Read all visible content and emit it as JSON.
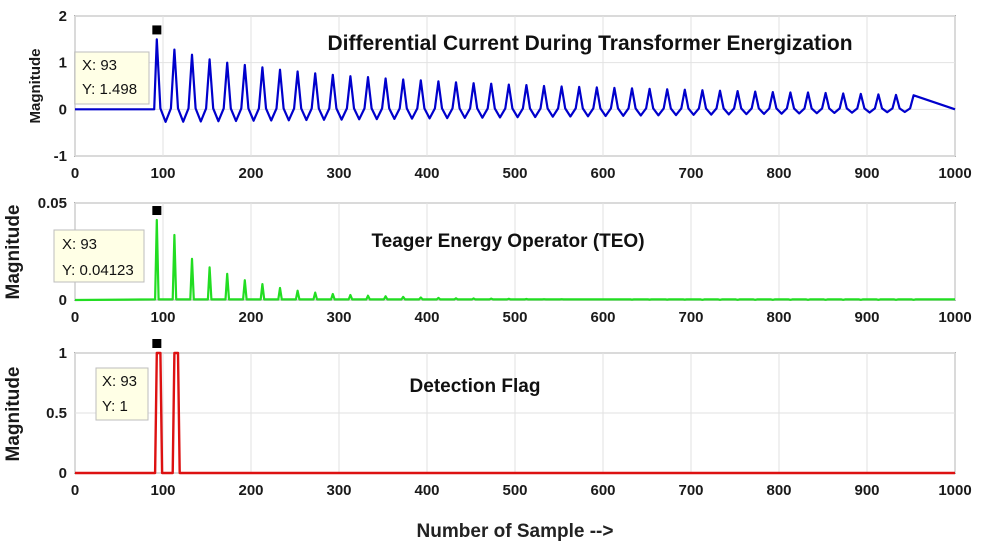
{
  "chart_data": [
    {
      "type": "line",
      "title": "Differential Current During Transformer Energization",
      "ylabel": "Magnitude",
      "xlabel": "",
      "xlim": [
        0,
        1000
      ],
      "ylim": [
        -1,
        2
      ],
      "xticks": [
        "0",
        "100",
        "200",
        "300",
        "400",
        "500",
        "600",
        "700",
        "800",
        "900",
        "1000"
      ],
      "yticks": [
        "-1",
        "0",
        "1",
        "2"
      ],
      "grid": true,
      "color": "#0000cc",
      "datatip": {
        "x": 93,
        "y": 1.498,
        "x_text": "X: 93",
        "y_text": "Y: 1.498"
      },
      "series": [
        {
          "x": [
            0,
            90,
            93,
            113,
            133,
            153,
            173,
            193,
            213,
            233,
            253,
            273,
            293,
            313,
            333,
            353,
            373,
            393,
            413,
            433,
            453,
            473,
            493,
            513,
            533,
            553,
            573,
            593,
            613,
            633,
            653,
            673,
            693,
            713,
            733,
            753,
            773,
            793,
            813,
            833,
            853,
            873,
            893,
            913,
            933,
            953,
            1000
          ],
          "values": [
            0.0,
            0.0,
            1.498,
            1.28,
            1.17,
            1.07,
            1.0,
            0.95,
            0.9,
            0.85,
            0.81,
            0.77,
            0.74,
            0.71,
            0.69,
            0.66,
            0.64,
            0.62,
            0.6,
            0.58,
            0.56,
            0.55,
            0.53,
            0.52,
            0.5,
            0.49,
            0.48,
            0.47,
            0.46,
            0.45,
            0.44,
            0.43,
            0.42,
            0.41,
            0.4,
            0.39,
            0.38,
            0.37,
            0.36,
            0.36,
            0.35,
            0.34,
            0.33,
            0.32,
            0.31,
            0.3,
            0.0
          ],
          "trough_min": -0.28
        }
      ]
    },
    {
      "type": "line",
      "title": "Teager Energy Operator (TEO)",
      "ylabel": "Magnitude",
      "xlabel": "",
      "xlim": [
        0,
        1000
      ],
      "ylim": [
        0,
        0.05
      ],
      "xticks": [
        "0",
        "100",
        "200",
        "300",
        "400",
        "500",
        "600",
        "700",
        "800",
        "900",
        "1000"
      ],
      "yticks": [
        "0",
        "0.05"
      ],
      "grid": true,
      "color": "#22dd22",
      "datatip": {
        "x": 93,
        "y": 0.04123,
        "x_text": "X: 93",
        "y_text": "Y: 0.04123"
      },
      "series": [
        {
          "x": [
            0,
            90,
            93,
            113,
            133,
            153,
            173,
            193,
            213,
            233,
            253,
            273,
            293,
            313,
            333,
            353,
            373,
            393,
            413,
            433,
            453,
            473,
            493,
            513,
            533,
            553,
            573,
            593,
            613,
            633,
            653,
            673,
            693,
            713,
            733,
            753,
            773,
            793,
            813,
            833,
            853,
            873,
            893,
            913,
            933,
            953,
            1000
          ],
          "values": [
            0.0,
            0.0,
            0.04123,
            0.0335,
            0.0212,
            0.0168,
            0.0135,
            0.0102,
            0.0082,
            0.0062,
            0.0048,
            0.0038,
            0.0031,
            0.0026,
            0.0022,
            0.0019,
            0.0016,
            0.0013,
            0.0011,
            0.0009,
            0.0008,
            0.0007,
            0.0006,
            0.0005,
            0.0004,
            0.0004,
            0.0003,
            0.0003,
            0.0003,
            0.0002,
            0.0002,
            0.0002,
            0.0002,
            0.0001,
            0.0001,
            0.0001,
            0.0001,
            0.0001,
            0.0001,
            0.0001,
            0.0001,
            0.0001,
            0.0001,
            0.0001,
            0.0001,
            0.0001,
            0.0
          ]
        }
      ]
    },
    {
      "type": "line",
      "title": "Detection Flag",
      "ylabel": "Magnitude",
      "xlabel": "Number of Sample -->",
      "xlim": [
        0,
        1000
      ],
      "ylim": [
        0,
        1
      ],
      "xticks": [
        "0",
        "100",
        "200",
        "300",
        "400",
        "500",
        "600",
        "700",
        "800",
        "900",
        "1000"
      ],
      "yticks": [
        "0",
        "0.5",
        "1"
      ],
      "grid": true,
      "color": "#dd1111",
      "datatip": {
        "x": 93,
        "y": 1,
        "x_text": "X: 93",
        "y_text": "Y: 1"
      },
      "series": [
        {
          "x": [
            0,
            91,
            93,
            97,
            99,
            111,
            113,
            117,
            119,
            1000
          ],
          "values": [
            0,
            0,
            1,
            1,
            0,
            0,
            1,
            1,
            0,
            0
          ]
        }
      ]
    }
  ]
}
